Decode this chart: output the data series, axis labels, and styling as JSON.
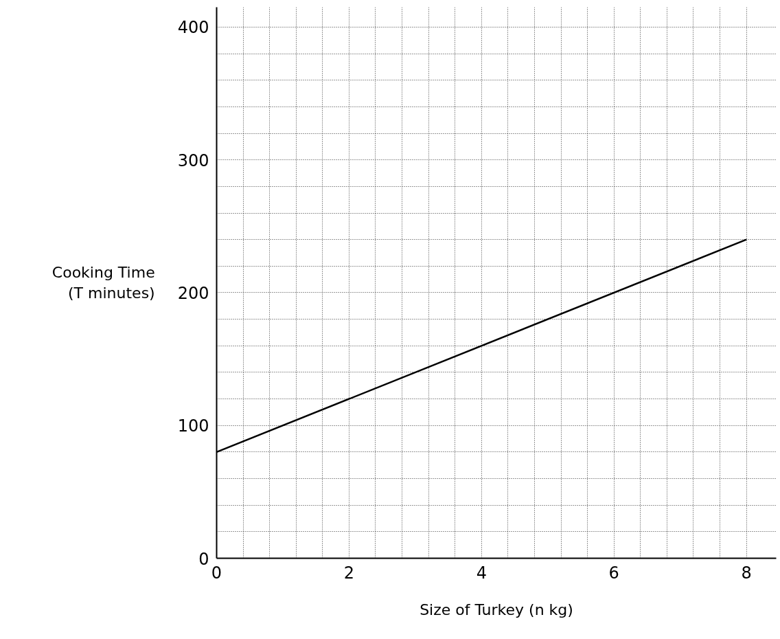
{
  "chart_data": {
    "type": "line",
    "xlabel": "Size of Turkey (n kg)",
    "ylabel": "Cooking Time\n(T minutes)",
    "x": [
      0,
      8
    ],
    "series": [
      {
        "color": "#000000",
        "values": [
          80,
          240
        ]
      }
    ],
    "xlim": [
      0,
      8.45
    ],
    "ylim": [
      0,
      415
    ],
    "xticks": [
      0,
      {
        "value": 0.4,
        "label": null
      },
      {
        "value": 0.8,
        "label": null
      },
      {
        "value": 1.2,
        "label": null
      },
      {
        "value": 1.6,
        "label": null
      },
      2,
      {
        "value": 2.4,
        "label": null
      },
      {
        "value": 2.8,
        "label": null
      },
      {
        "value": 3.2,
        "label": null
      },
      {
        "value": 3.6,
        "label": null
      },
      4,
      {
        "value": 4.4,
        "label": null
      },
      {
        "value": 4.8,
        "label": null
      },
      {
        "value": 5.2,
        "label": null
      },
      {
        "value": 5.6,
        "label": null
      },
      6,
      {
        "value": 6.4,
        "label": null
      },
      {
        "value": 6.8,
        "label": null
      },
      {
        "value": 7.2,
        "label": null
      },
      {
        "value": 7.6,
        "label": null
      },
      8
    ],
    "yticks": [
      0,
      {
        "value": 20,
        "label": null
      },
      {
        "value": 40,
        "label": null
      },
      {
        "value": 60,
        "label": null
      },
      {
        "value": 80,
        "label": null
      },
      100,
      {
        "value": 120,
        "label": null
      },
      {
        "value": 140,
        "label": null
      },
      {
        "value": 160,
        "label": null
      },
      {
        "value": 180,
        "label": null
      },
      200,
      {
        "value": 220,
        "label": null
      },
      {
        "value": 240,
        "label": null
      },
      {
        "value": 260,
        "label": null
      },
      {
        "value": 280,
        "label": null
      },
      300,
      {
        "value": 320,
        "label": null
      },
      {
        "value": 340,
        "label": null
      },
      {
        "value": 360,
        "label": null
      },
      {
        "value": 380,
        "label": null
      },
      400
    ],
    "grid": true,
    "line_style": "solid",
    "marker": "none"
  }
}
